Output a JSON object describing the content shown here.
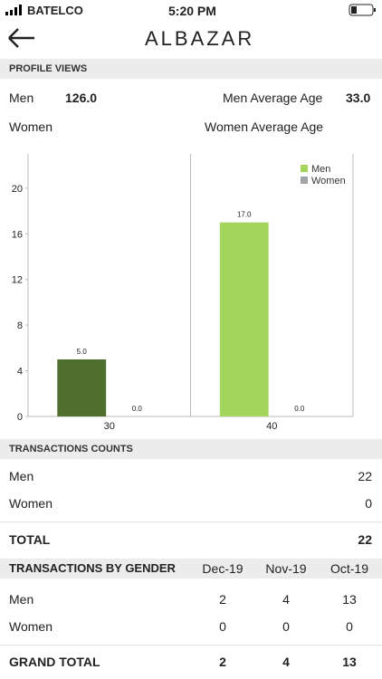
{
  "status_bar": {
    "carrier": "BATELCO",
    "time": "5:20 PM"
  },
  "header": {
    "logo": "ALBAZAR"
  },
  "profile_views": {
    "title": "PROFILE VIEWS",
    "men_label": "Men",
    "men_value": "126.0",
    "men_age_label": "Men Average Age",
    "men_age_value": "33.0",
    "women_label": "Women",
    "women_age_label": "Women Average Age"
  },
  "chart": {
    "type": "bar",
    "categories": [
      "30",
      "40"
    ],
    "series": [
      {
        "name": "Men",
        "color": "#a4d65e",
        "bar_colors": [
          "#4f6f2f",
          "#a4d65e"
        ],
        "values": [
          5.0,
          17.0
        ],
        "value_labels": [
          "5.0",
          "17.0"
        ]
      },
      {
        "name": "Women",
        "color": "#9ea4a8",
        "values": [
          0.0,
          0.0
        ],
        "value_labels": [
          "0.0",
          "0.0"
        ]
      }
    ],
    "ylim": [
      0,
      23
    ],
    "yticks": [
      0,
      4,
      8,
      12,
      16,
      20
    ],
    "legend": "upper right"
  },
  "transactions_counts": {
    "title": "TRANSACTIONS COUNTS",
    "rows": [
      [
        "Men",
        "22"
      ],
      [
        "Women",
        "0"
      ]
    ],
    "total": [
      "TOTAL",
      "22"
    ]
  },
  "transactions_by_gender": {
    "title": "TRANSACTIONS BY GENDER",
    "columns": [
      "Dec-19",
      "Nov-19",
      "Oct-19"
    ],
    "rows": [
      [
        "Men",
        "2",
        "4",
        "13"
      ],
      [
        "Women",
        "0",
        "0",
        "0"
      ]
    ],
    "total": [
      "GRAND TOTAL",
      "2",
      "4",
      "13"
    ]
  }
}
